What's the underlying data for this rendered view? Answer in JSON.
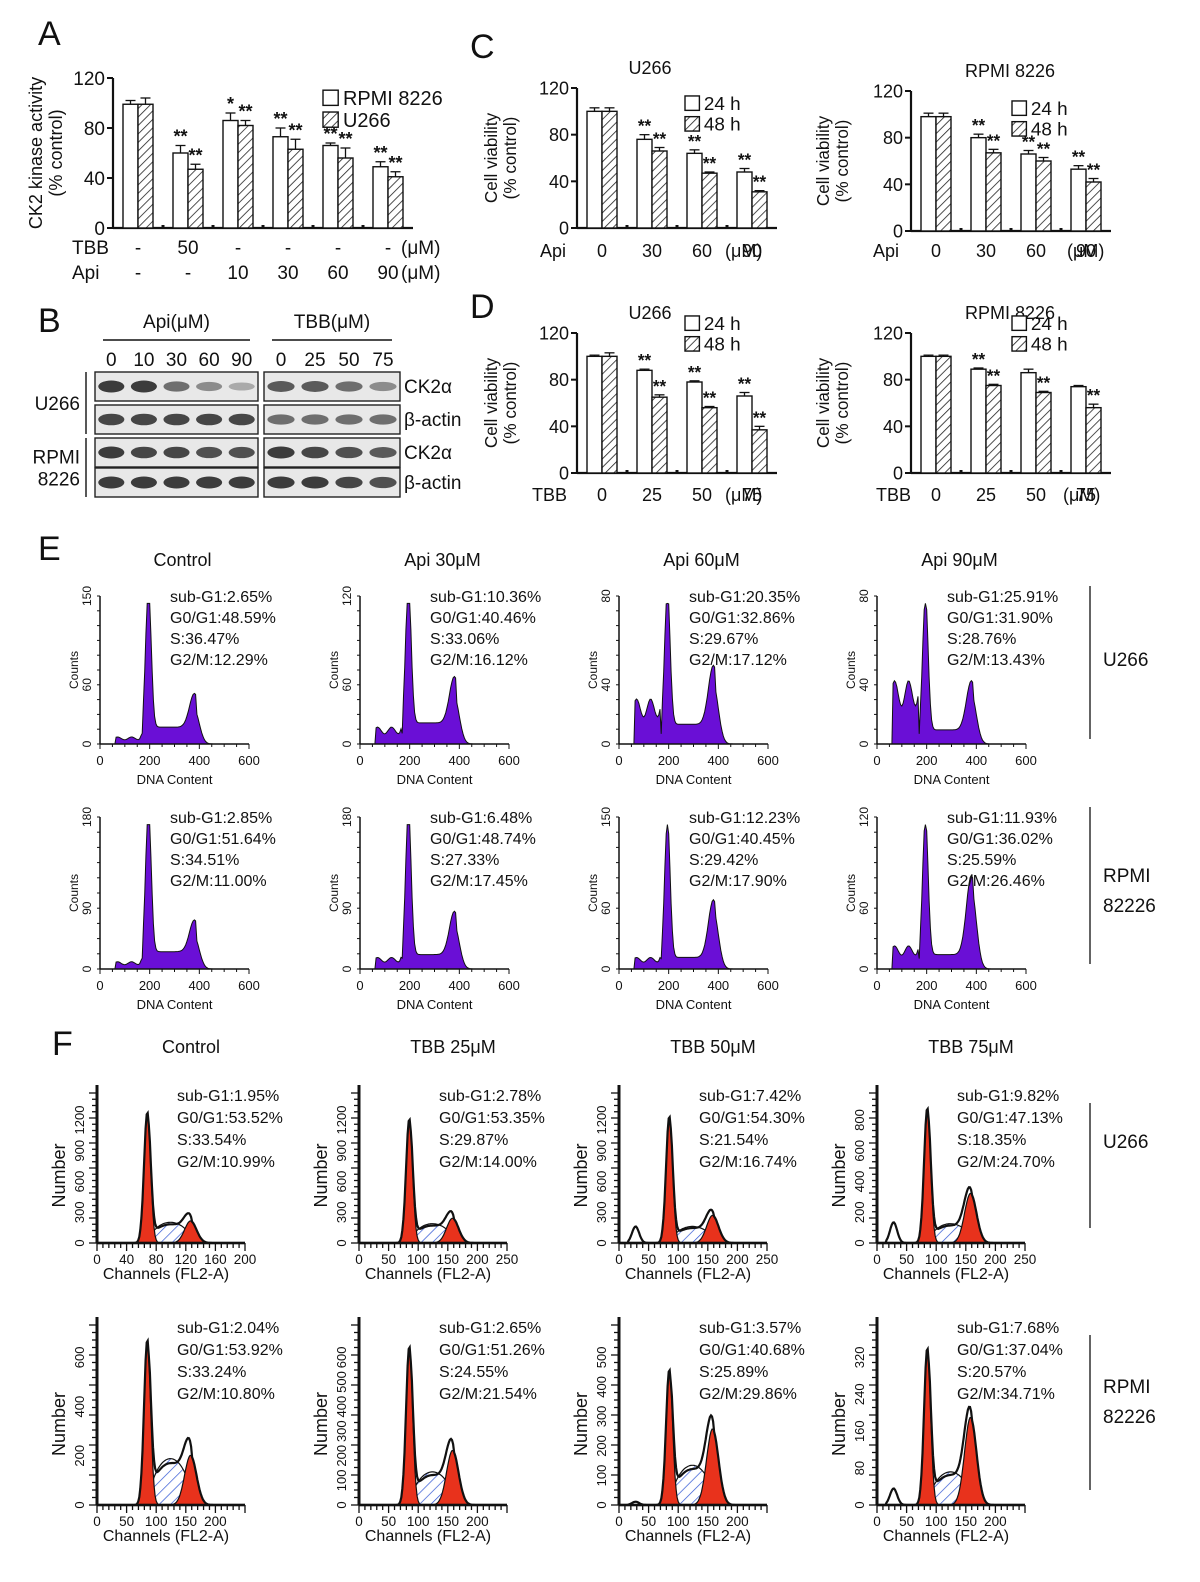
{
  "panel_letters": [
    "A",
    "B",
    "C",
    "D",
    "E",
    "F"
  ],
  "chart_data": [
    {
      "id": "A",
      "type": "bar",
      "title": "",
      "ylabel": [
        "CK2 kinase activity",
        "(% control)"
      ],
      "ylim": [
        0,
        120
      ],
      "yticks": [
        0,
        40,
        80,
        120
      ],
      "legend": [
        {
          "name": "RPMI 8226",
          "fill": "open"
        },
        {
          "name": "U266",
          "fill": "hatch"
        }
      ],
      "legend_position": "top-right",
      "row_labels": [
        "TBB",
        "Api"
      ],
      "categories": [
        {
          "rows": [
            "-",
            "-"
          ]
        },
        {
          "rows": [
            "50",
            "-"
          ]
        },
        {
          "rows": [
            "-",
            "10"
          ]
        },
        {
          "rows": [
            "-",
            "30"
          ]
        },
        {
          "rows": [
            "-",
            "60"
          ]
        },
        {
          "rows": [
            "-",
            "90"
          ]
        }
      ],
      "row_units": [
        "(μM)",
        "(μM)"
      ],
      "series": [
        {
          "name": "RPMI 8226",
          "values": [
            99,
            60,
            86,
            73,
            66,
            49
          ],
          "errors": [
            3,
            6,
            6,
            7,
            2,
            4
          ],
          "sig": [
            "",
            "**",
            "*",
            "**",
            "**",
            "**"
          ]
        },
        {
          "name": "U266",
          "values": [
            99,
            47,
            82,
            63,
            56,
            41
          ],
          "errors": [
            5,
            4,
            4,
            8,
            8,
            4
          ],
          "sig": [
            "",
            "**",
            "**",
            "**",
            "**",
            "**"
          ]
        }
      ]
    },
    {
      "id": "C-U266",
      "type": "bar",
      "title": "U266",
      "ylabel": [
        "Cell viability",
        "(% control)"
      ],
      "ylim": [
        0,
        120
      ],
      "yticks": [
        0,
        40,
        80,
        120
      ],
      "legend": [
        {
          "name": "24 h",
          "fill": "open"
        },
        {
          "name": "48 h",
          "fill": "hatch"
        }
      ],
      "legend_position": "top-right",
      "row_labels": [
        "Api"
      ],
      "categories": [
        {
          "rows": [
            "0"
          ]
        },
        {
          "rows": [
            "30"
          ]
        },
        {
          "rows": [
            "60"
          ]
        },
        {
          "rows": [
            "90"
          ]
        }
      ],
      "row_units": [
        "(μM)"
      ],
      "series": [
        {
          "name": "24 h",
          "values": [
            100,
            76,
            64,
            48
          ],
          "errors": [
            3,
            4,
            3,
            3
          ],
          "sig": [
            "",
            "**",
            "**",
            "**"
          ]
        },
        {
          "name": "48 h",
          "values": [
            100,
            66,
            47,
            31
          ],
          "errors": [
            3,
            3,
            1,
            1
          ],
          "sig": [
            "",
            "**",
            "**",
            "**"
          ]
        }
      ]
    },
    {
      "id": "C-RPMI8226",
      "type": "bar",
      "title": "RPMI 8226",
      "ylabel": [
        "Cell viability",
        "(% control)"
      ],
      "ylim": [
        0,
        120
      ],
      "yticks": [
        0,
        40,
        80,
        120
      ],
      "legend": [
        {
          "name": "24 h",
          "fill": "open"
        },
        {
          "name": "48 h",
          "fill": "hatch"
        }
      ],
      "legend_position": "top-right",
      "row_labels": [
        "Api"
      ],
      "categories": [
        {
          "rows": [
            "0"
          ]
        },
        {
          "rows": [
            "30"
          ]
        },
        {
          "rows": [
            "60"
          ]
        },
        {
          "rows": [
            "90"
          ]
        }
      ],
      "row_units": [
        "(μM)"
      ],
      "series": [
        {
          "name": "24 h",
          "values": [
            98,
            80,
            66,
            53
          ],
          "errors": [
            3,
            3,
            3,
            3
          ],
          "sig": [
            "",
            "**",
            "**",
            "**"
          ]
        },
        {
          "name": "48 h",
          "values": [
            98,
            67,
            60,
            42
          ],
          "errors": [
            3,
            3,
            3,
            3
          ],
          "sig": [
            "",
            "**",
            "**",
            "**"
          ]
        }
      ]
    },
    {
      "id": "D-U266",
      "type": "bar",
      "title": "U266",
      "ylabel": [
        "Cell viability",
        "(% control)"
      ],
      "ylim": [
        0,
        120
      ],
      "yticks": [
        0,
        40,
        80,
        120
      ],
      "legend": [
        {
          "name": "24 h",
          "fill": "open"
        },
        {
          "name": "48 h",
          "fill": "hatch"
        }
      ],
      "legend_position": "top-right",
      "row_labels": [
        "TBB"
      ],
      "categories": [
        {
          "rows": [
            "0"
          ]
        },
        {
          "rows": [
            "25"
          ]
        },
        {
          "rows": [
            "50"
          ]
        },
        {
          "rows": [
            "75"
          ]
        }
      ],
      "row_units": [
        "(μM)"
      ],
      "series": [
        {
          "name": "24 h",
          "values": [
            100,
            88,
            78,
            66
          ],
          "errors": [
            1,
            1,
            1,
            3
          ],
          "sig": [
            "",
            "**",
            "**",
            "**"
          ]
        },
        {
          "name": "48 h",
          "values": [
            100,
            65,
            56,
            37
          ],
          "errors": [
            3,
            2,
            1,
            3
          ],
          "sig": [
            "",
            "**",
            "**",
            "**"
          ]
        }
      ]
    },
    {
      "id": "D-RPMI8226",
      "type": "bar",
      "title": "RPMI 8226",
      "ylabel": [
        "Cell viability",
        "(% control)"
      ],
      "ylim": [
        0,
        120
      ],
      "yticks": [
        0,
        40,
        80,
        120
      ],
      "legend": [
        {
          "name": "24 h",
          "fill": "open"
        },
        {
          "name": "48 h",
          "fill": "hatch"
        }
      ],
      "legend_position": "top-right",
      "row_labels": [
        "TBB"
      ],
      "categories": [
        {
          "rows": [
            "0"
          ]
        },
        {
          "rows": [
            "25"
          ]
        },
        {
          "rows": [
            "50"
          ]
        },
        {
          "rows": [
            "75"
          ]
        }
      ],
      "row_units": [
        "(μM)"
      ],
      "series": [
        {
          "name": "24 h",
          "values": [
            100,
            89,
            86,
            74
          ],
          "errors": [
            1,
            1,
            3,
            1
          ],
          "sig": [
            "",
            "**",
            "",
            ""
          ]
        },
        {
          "name": "48 h",
          "values": [
            100,
            75,
            69,
            56
          ],
          "errors": [
            1,
            1,
            1,
            3
          ],
          "sig": [
            "",
            "**",
            "**",
            "**"
          ]
        }
      ]
    }
  ],
  "western_blot": {
    "groups": [
      {
        "label": "Api(μM)",
        "lanes": [
          "0",
          "10",
          "30",
          "60",
          "90"
        ]
      },
      {
        "label": "TBB(μM)",
        "lanes": [
          "0",
          "25",
          "50",
          "75"
        ]
      }
    ],
    "cell_lines": [
      {
        "label": [
          "U266"
        ],
        "proteins": [
          {
            "name": "CK2α",
            "intensity": [
              [
                0.85,
                0.85,
                0.6,
                0.45,
                0.3
              ],
              [
                0.7,
                0.7,
                0.6,
                0.45
              ]
            ]
          },
          {
            "name": "β-actin",
            "intensity": [
              [
                0.8,
                0.8,
                0.8,
                0.8,
                0.8
              ],
              [
                0.6,
                0.6,
                0.6,
                0.6
              ]
            ]
          }
        ]
      },
      {
        "label": [
          "RPMI",
          "8226"
        ],
        "proteins": [
          {
            "name": "CK2α",
            "intensity": [
              [
                0.85,
                0.8,
                0.8,
                0.75,
                0.75
              ],
              [
                0.85,
                0.8,
                0.75,
                0.7
              ]
            ]
          },
          {
            "name": "β-actin",
            "intensity": [
              [
                0.85,
                0.85,
                0.85,
                0.85,
                0.85
              ],
              [
                0.85,
                0.85,
                0.8,
                0.75
              ]
            ]
          }
        ]
      }
    ]
  },
  "flow_E": {
    "xlabel": "DNA Content",
    "ylabel": "Counts",
    "xticks": [
      "0",
      "200",
      "400",
      "600"
    ],
    "color": "#6a0fd6",
    "rows": [
      {
        "cell_line": [
          "U266"
        ],
        "panels": [
          {
            "title": "Control",
            "ytop": "150",
            "ymid": "60",
            "stats": [
              "sub-G1:2.65%",
              "G0/G1:48.59%",
              "S:36.47%",
              "G2/M:12.29%"
            ],
            "profile": {
              "sub": 0.05,
              "g1": 1.0,
              "s": 0.12,
              "g2": 0.24
            }
          },
          {
            "title": "Api 30μM",
            "ytop": "120",
            "ymid": "60",
            "stats": [
              "sub-G1:10.36%",
              "G0/G1:40.46%",
              "S:33.06%",
              "G2/M:16.12%"
            ],
            "profile": {
              "sub": 0.12,
              "g1": 1.0,
              "s": 0.15,
              "g2": 0.33
            }
          },
          {
            "title": "Api 60μM",
            "ytop": "80",
            "ymid": "40",
            "stats": [
              "sub-G1:20.35%",
              "G0/G1:32.86%",
              "S:29.67%",
              "G2/M:17.12%"
            ],
            "profile": {
              "sub": 0.32,
              "g1": 0.95,
              "s": 0.14,
              "g2": 0.42
            }
          },
          {
            "title": "Api 90μM",
            "ytop": "80",
            "ymid": "40",
            "stats": [
              "sub-G1:25.91%",
              "G0/G1:31.90%",
              "S:28.76%",
              "G2/M:13.43%"
            ],
            "profile": {
              "sub": 0.45,
              "g1": 0.95,
              "s": 0.1,
              "g2": 0.35
            }
          }
        ]
      },
      {
        "cell_line": [
          "RPMI",
          "82226"
        ],
        "panels": [
          {
            "title": "",
            "ytop": "180",
            "ymid": "90",
            "stats": [
              "sub-G1:2.85%",
              "G0/G1:51.64%",
              "S:34.51%",
              "G2/M:11.00%"
            ],
            "profile": {
              "sub": 0.05,
              "g1": 1.0,
              "s": 0.12,
              "g2": 0.22
            }
          },
          {
            "title": "",
            "ytop": "180",
            "ymid": "90",
            "stats": [
              "sub-G1:6.48%",
              "G0/G1:48.74%",
              "S:27.33%",
              "G2/M:17.45%"
            ],
            "profile": {
              "sub": 0.08,
              "g1": 1.0,
              "s": 0.1,
              "g2": 0.3
            }
          },
          {
            "title": "",
            "ytop": "150",
            "ymid": "60",
            "stats": [
              "sub-G1:12.23%",
              "G0/G1:40.45%",
              "S:29.42%",
              "G2/M:17.90%"
            ],
            "profile": {
              "sub": 0.08,
              "g1": 0.95,
              "s": 0.08,
              "g2": 0.4
            }
          },
          {
            "title": "",
            "ytop": "120",
            "ymid": "60",
            "stats": [
              "sub-G1:11.93%",
              "G0/G1:36.02%",
              "S:25.59%",
              "G2/M:26.46%"
            ],
            "profile": {
              "sub": 0.16,
              "g1": 0.95,
              "s": 0.1,
              "g2": 0.55
            }
          }
        ]
      }
    ]
  },
  "flow_F": {
    "xlabel": "Channels  (FL2-A)",
    "ylabel": "Number",
    "color": "#e8321c",
    "hatch_color": "#2f55d4",
    "rows": [
      {
        "cell_line": [
          "U266"
        ],
        "panels": [
          {
            "title": "Control",
            "xticks": [
              "0",
              "40",
              "80",
              "120",
              "160",
              "200"
            ],
            "yticks": [
              "0",
              "300",
              "600",
              "900",
              "1200"
            ],
            "stats": [
              "sub-G1:1.95%",
              "G0/G1:53.52%",
              "S:33.54%",
              "G2/M:10.99%"
            ],
            "profile": {
              "sub": 0.0,
              "g1": 0.95,
              "s": 0.15,
              "g2": 0.16
            }
          },
          {
            "title": "TBB 25μM",
            "xticks": [
              "0",
              "50",
              "100",
              "150",
              "200",
              "250"
            ],
            "yticks": [
              "0",
              "300",
              "600",
              "900",
              "1200"
            ],
            "stats": [
              "sub-G1:2.78%",
              "G0/G1:53.35%",
              "S:29.87%",
              "G2/M:14.00%"
            ],
            "profile": {
              "sub": 0.0,
              "g1": 0.9,
              "s": 0.14,
              "g2": 0.18
            }
          },
          {
            "title": "TBB 50μM",
            "xticks": [
              "0",
              "50",
              "100",
              "150",
              "200",
              "250"
            ],
            "yticks": [
              "0",
              "300",
              "600",
              "900",
              "1200"
            ],
            "stats": [
              "sub-G1:7.42%",
              "G0/G1:54.30%",
              "S:21.54%",
              "G2/M:16.74%"
            ],
            "profile": {
              "sub": 0.12,
              "g1": 0.92,
              "s": 0.12,
              "g2": 0.2
            }
          },
          {
            "title": "TBB 75μM",
            "xticks": [
              "0",
              "50",
              "100",
              "150",
              "200",
              "250"
            ],
            "yticks": [
              "0",
              "200",
              "400",
              "600",
              "800"
            ],
            "stats": [
              "sub-G1:9.82%",
              "G0/G1:47.13%",
              "S:18.35%",
              "G2/M:24.70%"
            ],
            "profile": {
              "sub": 0.15,
              "g1": 0.98,
              "s": 0.14,
              "g2": 0.36
            }
          }
        ]
      },
      {
        "cell_line": [
          "RPMI",
          "82226"
        ],
        "panels": [
          {
            "title": "",
            "xticks": [
              "0",
              "50",
              "100",
              "150",
              "200"
            ],
            "yticks": [
              "0",
              "200",
              "400",
              "600"
            ],
            "stats": [
              "sub-G1:2.04%",
              "G0/G1:53.92%",
              "S:33.24%",
              "G2/M:10.80%"
            ],
            "profile": {
              "sub": 0.0,
              "g1": 1.0,
              "s": 0.28,
              "g2": 0.3
            }
          },
          {
            "title": "",
            "xticks": [
              "0",
              "50",
              "100",
              "150",
              "200"
            ],
            "yticks": [
              "0",
              "100",
              "200",
              "300",
              "400",
              "500",
              "600"
            ],
            "stats": [
              "sub-G1:2.65%",
              "G0/G1:51.26%",
              "S:24.55%",
              "G2/M:21.54%"
            ],
            "profile": {
              "sub": 0.0,
              "g1": 0.96,
              "s": 0.2,
              "g2": 0.33
            }
          },
          {
            "title": "",
            "xticks": [
              "0",
              "50",
              "100",
              "150",
              "200"
            ],
            "yticks": [
              "0",
              "100",
              "200",
              "300",
              "400",
              "500"
            ],
            "stats": [
              "sub-G1:3.57%",
              "G0/G1:40.68%",
              "S:25.89%",
              "G2/M:29.86%"
            ],
            "profile": {
              "sub": 0.02,
              "g1": 0.82,
              "s": 0.24,
              "g2": 0.46
            }
          },
          {
            "title": "",
            "xticks": [
              "0",
              "50",
              "100",
              "150",
              "200"
            ],
            "yticks": [
              "0",
              "80",
              "160",
              "240",
              "320"
            ],
            "stats": [
              "sub-G1:7.68%",
              "G0/G1:37.04%",
              "S:20.57%",
              "G2/M:34.71%"
            ],
            "profile": {
              "sub": 0.1,
              "g1": 0.95,
              "s": 0.2,
              "g2": 0.53
            }
          }
        ]
      }
    ]
  }
}
